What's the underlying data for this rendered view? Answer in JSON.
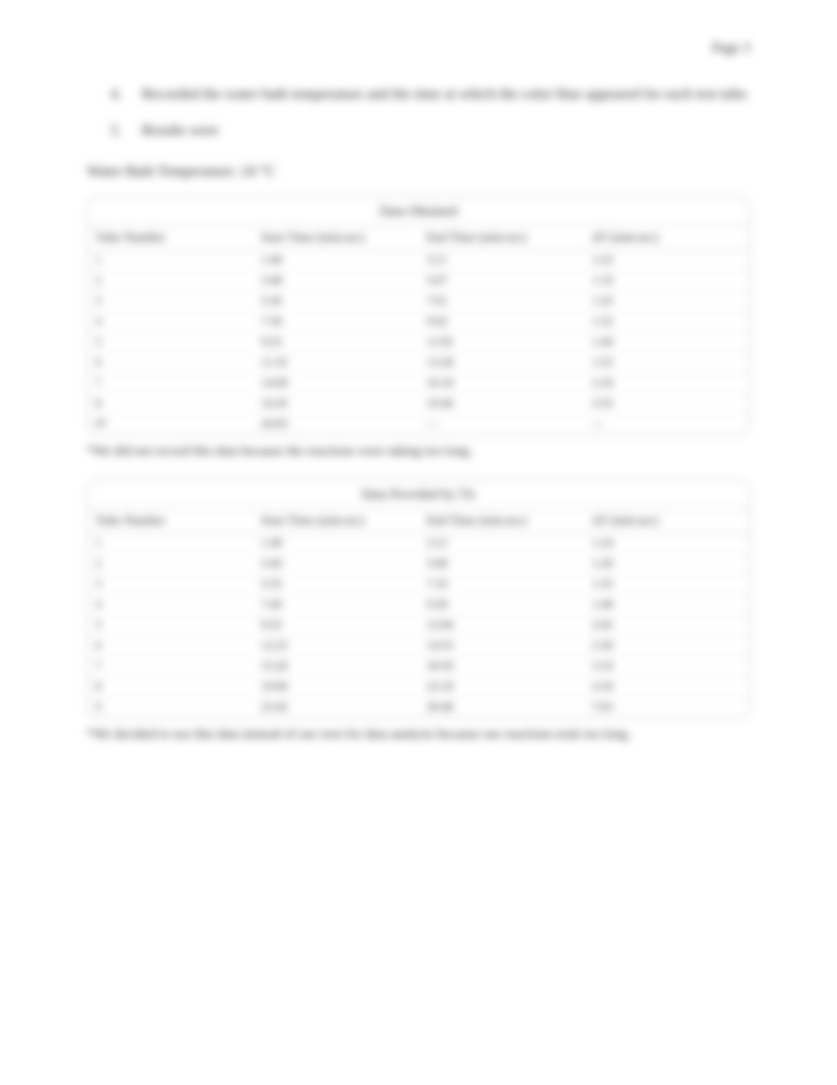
{
  "header": {
    "right": "Page 3"
  },
  "steps": [
    {
      "marker": "4.",
      "text": "Recorded the water bath temperature and the time at which the color blue appeared for each test tube."
    },
    {
      "marker": "5.",
      "text": "Results were"
    }
  ],
  "temp_line": "Water Bath Temperature: 24 °C",
  "table1": {
    "title": "Data Obtained",
    "columns": [
      "Tube Number",
      "Start Time (min:sec)",
      "End Time (min:sec)",
      "ΔT (min:sec)"
    ],
    "rows": [
      [
        "1",
        "1:48",
        "3:11",
        "1:23"
      ],
      [
        "2",
        "3:48",
        "5:07",
        "1:19"
      ],
      [
        "3",
        "5:36",
        "7:01",
        "1:25"
      ],
      [
        "4",
        "7:30",
        "9:02",
        "1:32"
      ],
      [
        "5",
        "9:25",
        "11:05",
        "1:40"
      ],
      [
        "6",
        "11:35",
        "13:28",
        "1:53"
      ],
      [
        "7",
        "14:00",
        "16:18",
        "2:18"
      ],
      [
        "8",
        "16:45",
        "19:40",
        "2:55"
      ],
      [
        "9*",
        "20:05",
        "—",
        "—"
      ]
    ],
    "footnote": "*We did not record this data because the reactions were taking too long."
  },
  "table2": {
    "title": "Data Provided by TA",
    "columns": [
      "Tube Number",
      "Start Time (min:sec)",
      "End Time (min:sec)",
      "ΔT (min:sec)"
    ],
    "rows": [
      [
        "1",
        "1:48",
        "3:12",
        "1:24"
      ],
      [
        "2",
        "3:40",
        "5:08",
        "1:28"
      ],
      [
        "3",
        "5:35",
        "7:10",
        "1:35"
      ],
      [
        "4",
        "7:40",
        "9:28",
        "1:48"
      ],
      [
        "5",
        "9:55",
        "12:00",
        "2:05"
      ],
      [
        "6",
        "12:25",
        "14:55",
        "2:30"
      ],
      [
        "7",
        "15:20",
        "18:30",
        "3:10"
      ],
      [
        "8",
        "19:00",
        "23:18",
        "4:18"
      ],
      [
        "9",
        "23:45",
        "30:48",
        "7:03"
      ]
    ],
    "footnote": "*We decided to use this data instead of our own for data analysis because our reactions took too long."
  }
}
